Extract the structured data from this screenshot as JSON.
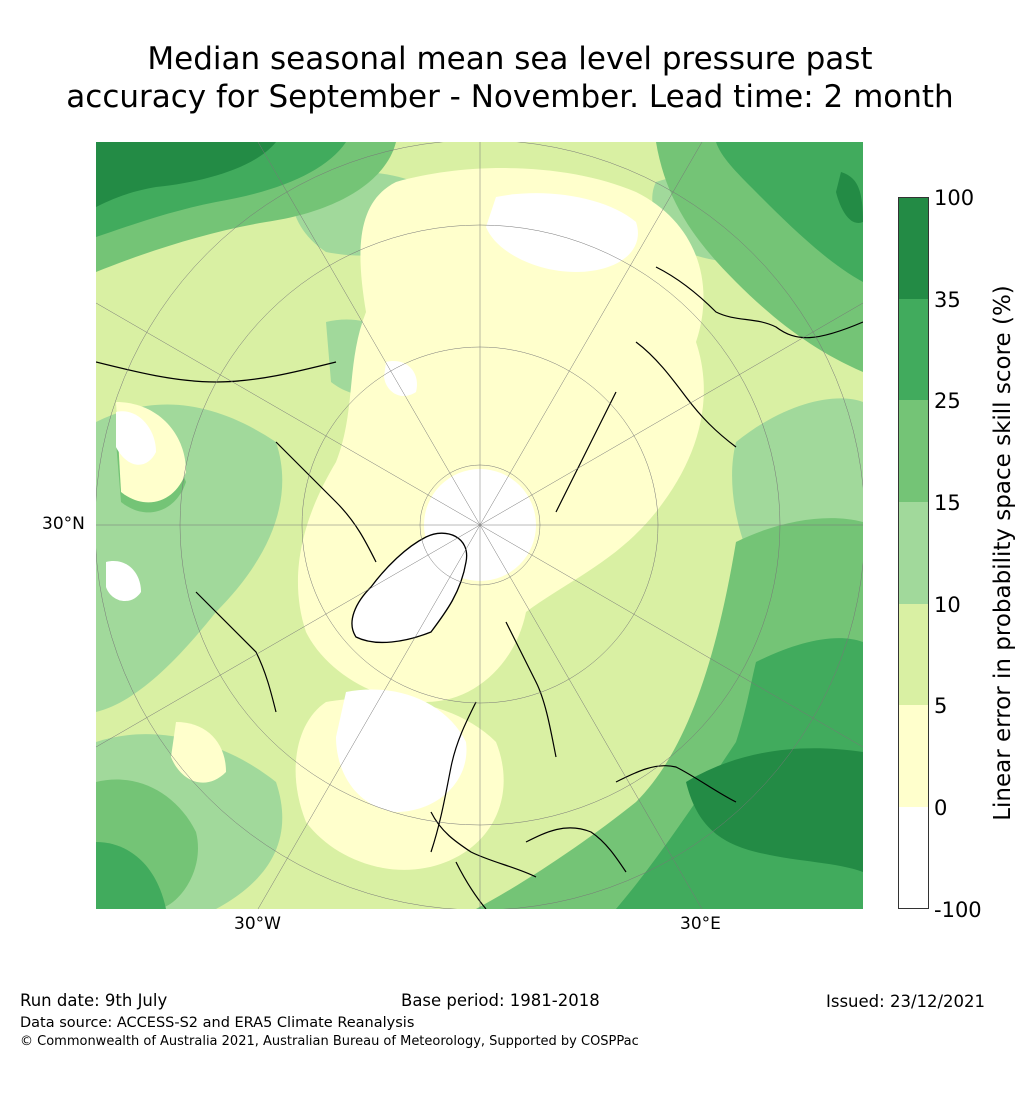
{
  "title": {
    "line1": "Median seasonal mean sea level pressure past",
    "line2": "accuracy for September - November. Lead time: 2 month"
  },
  "axes": {
    "lat_label": "30°N",
    "lon_left": "30°W",
    "lon_right": "30°E"
  },
  "colorbar": {
    "title": "Linear error in probability space skill score (%)",
    "ticks": [
      "100",
      "35",
      "25",
      "15",
      "10",
      "5",
      "0",
      "-100"
    ],
    "classes": [
      {
        "range": "35-100",
        "color": "#238b45"
      },
      {
        "range": "25-35",
        "color": "#41ab5d"
      },
      {
        "range": "15-25",
        "color": "#74c476"
      },
      {
        "range": "10-15",
        "color": "#a1d99b"
      },
      {
        "range": "5-10",
        "color": "#d9f0a3"
      },
      {
        "range": "0-5",
        "color": "#ffffcc"
      },
      {
        "range": "-100-0",
        "color": "#ffffff"
      }
    ]
  },
  "map": {
    "projection": "north polar stereographic",
    "land_white_region": "Greenland"
  },
  "footer": {
    "run_date": "Run date: 9th July",
    "base_period": "Base period: 1981-2018",
    "issued": "Issued: 23/12/2021",
    "data_source": "Data source: ACCESS-S2 and ERA5 Climate Reanalysis",
    "copyright": "© Commonwealth of Australia 2021, Australian Bureau of Meteorology, Supported by COSPPac"
  }
}
